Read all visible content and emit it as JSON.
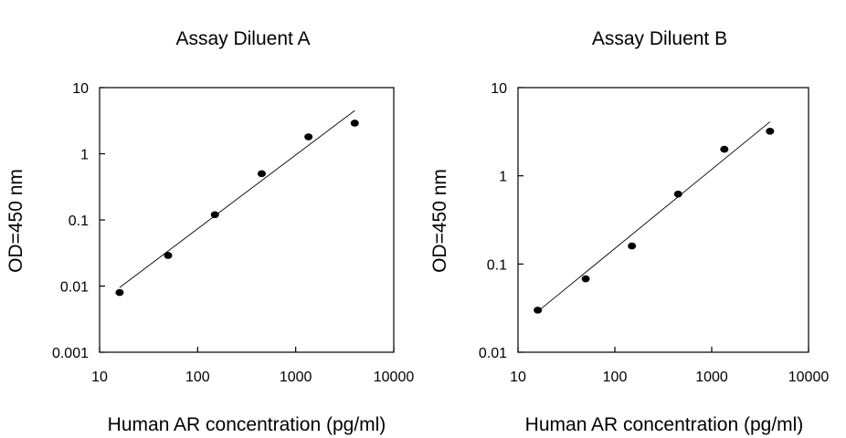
{
  "chart_data": [
    {
      "type": "scatter",
      "title": "Assay Diluent A",
      "xlabel": "Human AR concentration (pg/ml)",
      "ylabel": "OD=450 nm",
      "xscale": "log",
      "yscale": "log",
      "xlim": [
        10,
        10000
      ],
      "ylim": [
        0.001,
        10
      ],
      "xticks": [
        10,
        100,
        1000,
        10000
      ],
      "xtick_labels": [
        "10",
        "100",
        "1000",
        "10000"
      ],
      "yticks": [
        0.001,
        0.01,
        0.1,
        1,
        10
      ],
      "ytick_labels": [
        "0.001",
        "0.01",
        "0.1",
        "1",
        "10"
      ],
      "grid": false,
      "points": {
        "x": [
          16,
          50,
          150,
          450,
          1350,
          4000
        ],
        "y": [
          0.008,
          0.029,
          0.12,
          0.5,
          1.8,
          2.9
        ]
      },
      "fit_line": {
        "x": [
          16,
          4000
        ],
        "y": [
          0.0095,
          4.5
        ]
      }
    },
    {
      "type": "scatter",
      "title": "Assay Diluent B",
      "xlabel": "Human AR concentration (pg/ml)",
      "ylabel": "OD=450 nm",
      "xscale": "log",
      "yscale": "log",
      "xlim": [
        10,
        10000
      ],
      "ylim": [
        0.01,
        10
      ],
      "xticks": [
        10,
        100,
        1000,
        10000
      ],
      "xtick_labels": [
        "10",
        "100",
        "1000",
        "10000"
      ],
      "yticks": [
        0.01,
        0.1,
        1,
        10
      ],
      "ytick_labels": [
        "0.01",
        "0.1",
        "1",
        "10"
      ],
      "grid": false,
      "points": {
        "x": [
          16,
          50,
          150,
          450,
          1350,
          4000
        ],
        "y": [
          0.03,
          0.068,
          0.16,
          0.62,
          2.0,
          3.2
        ]
      },
      "fit_line": {
        "x": [
          16,
          4000
        ],
        "y": [
          0.029,
          4.1
        ]
      }
    }
  ]
}
